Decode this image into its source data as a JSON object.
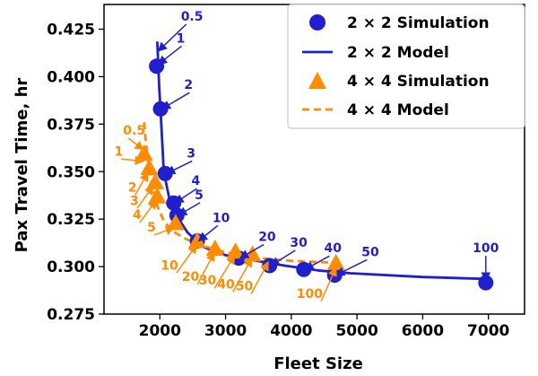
{
  "chart_data": {
    "type": "line",
    "xlabel": "Fleet Size",
    "ylabel": "Pax Travel Time, hr",
    "xlim": [
      1150,
      7550
    ],
    "ylim": [
      0.275,
      0.438
    ],
    "xticks": [
      2000,
      3000,
      4000,
      5000,
      6000,
      7000
    ],
    "xtick_labels": [
      "2000",
      "3000",
      "4000",
      "5000",
      "6000",
      "7000"
    ],
    "yticks": [
      0.275,
      0.3,
      0.325,
      0.35,
      0.375,
      0.4,
      0.425
    ],
    "ytick_labels": [
      "0.275",
      "0.300",
      "0.325",
      "0.350",
      "0.375",
      "0.400",
      "0.425"
    ],
    "grid": false,
    "legend_position": "top-right",
    "colors": {
      "blue": "#1f1fd0",
      "orange": "#ff8c00"
    },
    "series": [
      {
        "name": "2 × 2 Simulation",
        "kind": "scatter",
        "marker": "circle",
        "color": "#1f1fd0",
        "x": [
          1950,
          2010,
          2080,
          2210,
          2260,
          2570,
          3200,
          3670,
          4190,
          4660,
          6960
        ],
        "y": [
          0.4055,
          0.383,
          0.349,
          0.3335,
          0.327,
          0.3135,
          0.3045,
          0.3005,
          0.2985,
          0.2955,
          0.2915
        ]
      },
      {
        "name": "2 × 2 Model",
        "kind": "line",
        "linestyle": "solid",
        "color": "#1f1fd0",
        "x": [
          1960,
          1975,
          1990,
          2010,
          2060,
          2150,
          2250,
          2420,
          2650,
          3000,
          3400,
          3900,
          4400,
          4900,
          6000,
          6960
        ],
        "y": [
          0.4185,
          0.4065,
          0.394,
          0.383,
          0.3495,
          0.335,
          0.327,
          0.318,
          0.3105,
          0.306,
          0.3035,
          0.3005,
          0.298,
          0.2965,
          0.2945,
          0.2935
        ]
      },
      {
        "name": "4 × 4 Simulation",
        "kind": "scatter",
        "marker": "triangle",
        "color": "#ff8c00",
        "x": [
          1760,
          1840,
          1930,
          1960,
          2240,
          2570,
          2840,
          3150,
          3410,
          4680
        ],
        "y": [
          0.3595,
          0.352,
          0.3445,
          0.337,
          0.323,
          0.3135,
          0.3095,
          0.308,
          0.3065,
          0.302
        ]
      },
      {
        "name": "4 × 4 Model",
        "kind": "line",
        "linestyle": "dashed",
        "color": "#ff8c00",
        "x": [
          1760,
          1790,
          1830,
          1880,
          1960,
          2060,
          2200,
          2400,
          2600,
          2900,
          3200,
          3500,
          4000,
          4680
        ],
        "y": [
          0.376,
          0.364,
          0.354,
          0.343,
          0.332,
          0.324,
          0.3185,
          0.3145,
          0.3115,
          0.3085,
          0.306,
          0.3045,
          0.303,
          0.302
        ]
      }
    ],
    "annotations": {
      "blue": [
        {
          "text": "0.5",
          "tx": 2320,
          "ty": 0.4295,
          "ax": 1975,
          "ay": 0.4135,
          "anchor": "start"
        },
        {
          "text": "1",
          "tx": 2250,
          "ty": 0.418,
          "ax": 1975,
          "ay": 0.4065,
          "anchor": "start"
        },
        {
          "text": "2",
          "tx": 2370,
          "ty": 0.3935,
          "ax": 2030,
          "ay": 0.383,
          "anchor": "start"
        },
        {
          "text": "3",
          "tx": 2410,
          "ty": 0.3575,
          "ax": 2100,
          "ay": 0.349,
          "anchor": "start"
        },
        {
          "text": "4",
          "tx": 2480,
          "ty": 0.343,
          "ax": 2230,
          "ay": 0.3335,
          "anchor": "start"
        },
        {
          "text": "5",
          "tx": 2530,
          "ty": 0.3355,
          "ax": 2280,
          "ay": 0.327,
          "anchor": "start"
        },
        {
          "text": "10",
          "tx": 2800,
          "ty": 0.3235,
          "ax": 2590,
          "ay": 0.3135,
          "anchor": "start"
        },
        {
          "text": "20",
          "tx": 3500,
          "ty": 0.3135,
          "ax": 3220,
          "ay": 0.3045,
          "anchor": "start"
        },
        {
          "text": "30",
          "tx": 3980,
          "ty": 0.3105,
          "ax": 3690,
          "ay": 0.3005,
          "anchor": "start"
        },
        {
          "text": "40",
          "tx": 4500,
          "ty": 0.3075,
          "ax": 4210,
          "ay": 0.2985,
          "anchor": "start"
        },
        {
          "text": "50",
          "tx": 5070,
          "ty": 0.3055,
          "ax": 4680,
          "ay": 0.2955,
          "anchor": "start"
        },
        {
          "text": "100",
          "tx": 6960,
          "ty": 0.3075,
          "ax": 6960,
          "ay": 0.2925,
          "anchor": "middle"
        }
      ],
      "orange": [
        {
          "text": "0.5",
          "tx": 1440,
          "ty": 0.3695,
          "ax": 1750,
          "ay": 0.3615,
          "anchor": "start"
        },
        {
          "text": "1",
          "tx": 1440,
          "ty": 0.3585,
          "ax": 1750,
          "ay": 0.3555,
          "anchor": "end"
        },
        {
          "text": "2",
          "tx": 1650,
          "ty": 0.3395,
          "ax": 1820,
          "ay": 0.3495,
          "anchor": "end"
        },
        {
          "text": "3",
          "tx": 1680,
          "ty": 0.3325,
          "ax": 1900,
          "ay": 0.3425,
          "anchor": "end"
        },
        {
          "text": "4",
          "tx": 1720,
          "ty": 0.325,
          "ax": 1950,
          "ay": 0.335,
          "anchor": "end"
        },
        {
          "text": "5",
          "tx": 1940,
          "ty": 0.3185,
          "ax": 2220,
          "ay": 0.3205,
          "anchor": "end"
        },
        {
          "text": "10",
          "tx": 2280,
          "ty": 0.2985,
          "ax": 2560,
          "ay": 0.3115,
          "anchor": "end"
        },
        {
          "text": "20",
          "tx": 2600,
          "ty": 0.2925,
          "ax": 2830,
          "ay": 0.3075,
          "anchor": "end"
        },
        {
          "text": "30",
          "tx": 2860,
          "ty": 0.2905,
          "ax": 3140,
          "ay": 0.306,
          "anchor": "end"
        },
        {
          "text": "40",
          "tx": 3140,
          "ty": 0.2885,
          "ax": 3400,
          "ay": 0.3045,
          "anchor": "end"
        },
        {
          "text": "50",
          "tx": 3420,
          "ty": 0.2875,
          "ax": 3650,
          "ay": 0.3025,
          "anchor": "end"
        },
        {
          "text": "100",
          "tx": 4480,
          "ty": 0.2835,
          "ax": 4680,
          "ay": 0.2995,
          "anchor": "end"
        }
      ]
    }
  }
}
